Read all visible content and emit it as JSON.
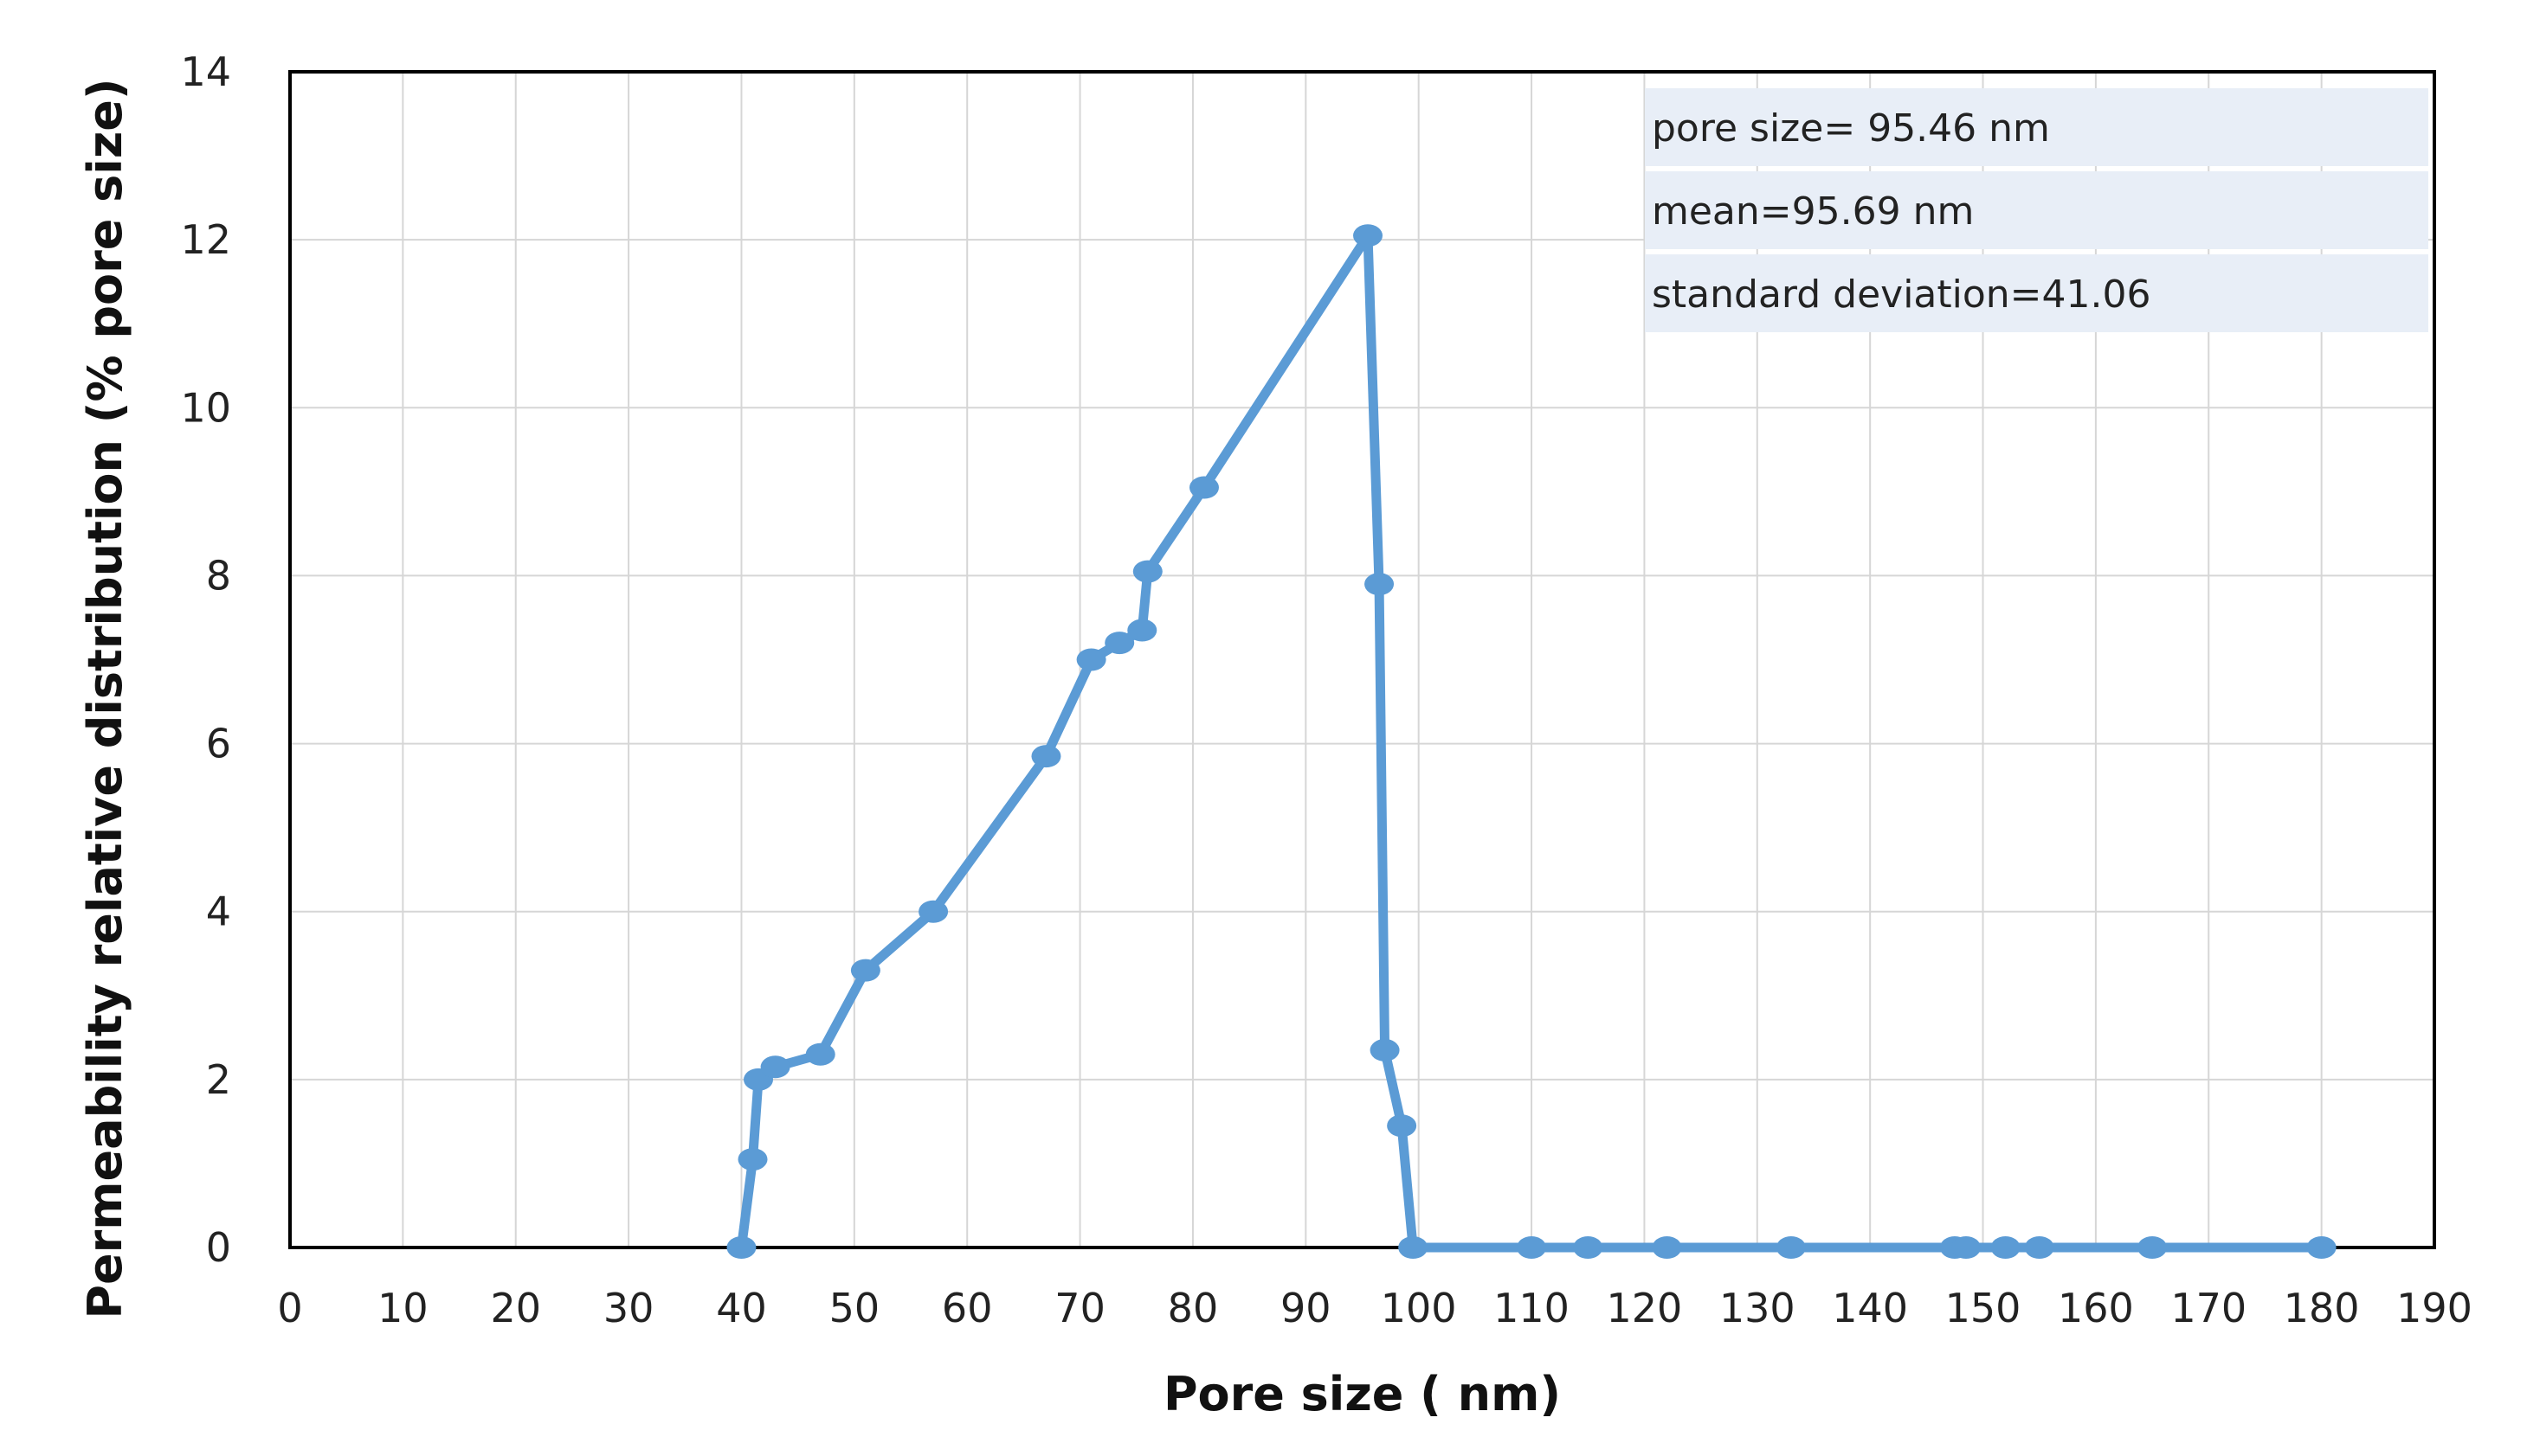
{
  "chart_data": {
    "type": "line",
    "xlabel": "Pore size ( nm)",
    "ylabel": "Permeability relative distribution (% pore size)",
    "xlim": [
      0,
      190
    ],
    "ylim": [
      0,
      14
    ],
    "x_ticks": [
      0,
      10,
      20,
      30,
      40,
      50,
      60,
      70,
      80,
      90,
      100,
      110,
      120,
      130,
      140,
      150,
      160,
      170,
      180,
      190
    ],
    "y_ticks": [
      0,
      2,
      4,
      6,
      8,
      10,
      12,
      14
    ],
    "grid": true,
    "series": [
      {
        "color": "#5B9BD5",
        "marker": "circle",
        "points": [
          {
            "x": 40,
            "y": 0
          },
          {
            "x": 41,
            "y": 1.05
          },
          {
            "x": 41.5,
            "y": 2.0
          },
          {
            "x": 43,
            "y": 2.15
          },
          {
            "x": 47,
            "y": 2.3
          },
          {
            "x": 51,
            "y": 3.3
          },
          {
            "x": 57,
            "y": 4.0
          },
          {
            "x": 67,
            "y": 5.85
          },
          {
            "x": 71,
            "y": 7.0
          },
          {
            "x": 73.5,
            "y": 7.2
          },
          {
            "x": 75.5,
            "y": 7.35
          },
          {
            "x": 76,
            "y": 8.05
          },
          {
            "x": 81,
            "y": 9.05
          },
          {
            "x": 95.5,
            "y": 12.05
          },
          {
            "x": 96.5,
            "y": 7.9
          },
          {
            "x": 97,
            "y": 2.35
          },
          {
            "x": 98.5,
            "y": 1.45
          },
          {
            "x": 99.5,
            "y": 0
          },
          {
            "x": 110,
            "y": 0
          },
          {
            "x": 115,
            "y": 0
          },
          {
            "x": 122,
            "y": 0
          },
          {
            "x": 133,
            "y": 0
          },
          {
            "x": 147.5,
            "y": 0
          },
          {
            "x": 148.5,
            "y": 0
          },
          {
            "x": 152,
            "y": 0
          },
          {
            "x": 155,
            "y": 0
          },
          {
            "x": 165,
            "y": 0
          },
          {
            "x": 180,
            "y": 0
          }
        ]
      }
    ],
    "annotations": [
      "pore size= 95.46 nm",
      "mean=95.69 nm",
      "standard deviation=41.06"
    ],
    "annotation_box_color": "#E8EEF7"
  }
}
